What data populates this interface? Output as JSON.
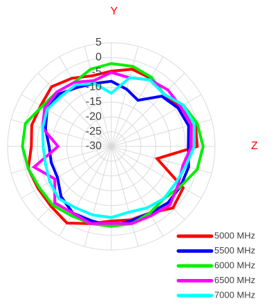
{
  "chart_data": {
    "type": "radar",
    "annotations": [
      {
        "text": "Y"
      },
      {
        "text": "Z"
      }
    ],
    "ylim": [
      -30,
      5
    ],
    "yticks": [
      5,
      0,
      -5,
      -10,
      -15,
      -20,
      -25,
      -30
    ],
    "grid": true,
    "legend": "bottom-right",
    "series": [
      {
        "name": "5000 MHz",
        "color": "#ff0000",
        "values": [
          -4.6,
          -3,
          -3.4,
          -5,
          -3.4,
          -0.6,
          -1,
          -14,
          -2,
          -0.6,
          -4,
          -4.3,
          -4.8,
          -3,
          -0.1,
          -1.3,
          -1.5,
          -1,
          -3,
          -2.2,
          -2.5,
          -1.5,
          -3.4,
          -5.3
        ]
      },
      {
        "name": "5500 MHz",
        "color": "#0000ff",
        "values": [
          -8,
          -10,
          -12,
          -6,
          -4,
          -3,
          -4,
          -3,
          -3,
          -3,
          -4,
          -4,
          -3,
          -4,
          -4,
          -6,
          -9,
          -9,
          -9,
          -7,
          -5,
          -5,
          -7,
          -8
        ]
      },
      {
        "name": "6000 MHz",
        "color": "#00ee00",
        "values": [
          -2,
          -2,
          -3,
          -5,
          -2,
          0,
          1,
          0,
          -3,
          -5,
          -4,
          -3,
          -3,
          -3,
          -3,
          -2,
          -2,
          -1,
          0,
          0,
          -3,
          -4,
          -5,
          -3
        ]
      },
      {
        "name": "6500 MHz",
        "color": "#ff00ff",
        "values": [
          -5,
          -6,
          -4,
          -3,
          -3,
          -2,
          -3,
          -5,
          -4,
          -2,
          -3,
          -3,
          -4,
          -3,
          -4,
          -3,
          -8,
          -3,
          -12,
          -6,
          -4,
          -4,
          -5,
          -7
        ]
      },
      {
        "name": "7000 MHz",
        "color": "#00ffff",
        "values": [
          -12,
          -6,
          -4,
          -5,
          -2,
          -1,
          -2,
          -4,
          -5,
          -5,
          -6,
          -7,
          -6,
          -6,
          -6,
          -5,
          -6,
          -7,
          -7,
          -6,
          -5,
          -6,
          -6,
          -8
        ]
      }
    ]
  }
}
